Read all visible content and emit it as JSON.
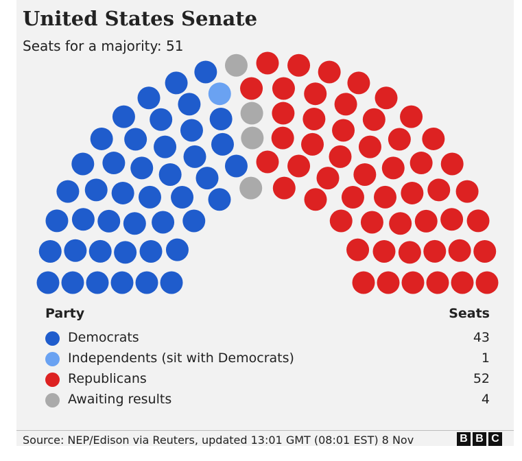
{
  "header": {
    "title": "United States Senate",
    "subtitle": "Seats for a majority: 51"
  },
  "legend": {
    "party_header": "Party",
    "seats_header": "Seats",
    "rows": [
      {
        "label": "Democrats",
        "seats": "43",
        "color": "#1f5ccc"
      },
      {
        "label": "Independents (sit with Democrats)",
        "seats": "1",
        "color": "#6aa2f2"
      },
      {
        "label": "Republicans",
        "seats": "52",
        "color": "#dd2222"
      },
      {
        "label": "Awaiting results",
        "seats": "4",
        "color": "#aaaaaa"
      }
    ]
  },
  "chart_data": {
    "type": "parliament",
    "title": "United States Senate",
    "subtitle": "Seats for a majority: 51",
    "total_seats": 100,
    "majority": 51,
    "series": [
      {
        "name": "Democrats",
        "value": 43,
        "color": "#1f5ccc"
      },
      {
        "name": "Independents (sit with Democrats)",
        "value": 1,
        "color": "#6aa2f2"
      },
      {
        "name": "Awaiting results",
        "value": 4,
        "color": "#aaaaaa"
      },
      {
        "name": "Republicans",
        "value": 52,
        "color": "#dd2222"
      }
    ]
  },
  "footer": {
    "source": "Source: NEP/Edison via Reuters, updated 13:01 GMT (08:01 EST) 8 Nov",
    "logo_letters": [
      "B",
      "B",
      "C"
    ]
  }
}
